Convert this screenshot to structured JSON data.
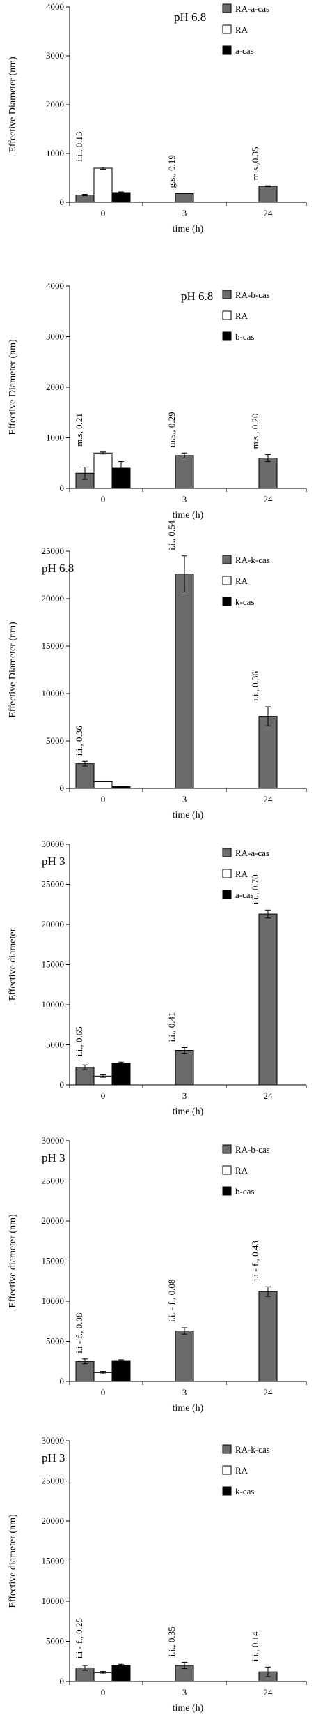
{
  "chart_data": [
    {
      "type": "bar",
      "title": "pH 6.8",
      "xlabel": "time (h)",
      "ylabel": "Effective Diameter (nm)",
      "ylim": [
        0,
        4000
      ],
      "yticks": [
        0,
        1000,
        2000,
        3000,
        4000
      ],
      "categories": [
        "0",
        "3",
        "24"
      ],
      "legend_position": "top-right",
      "series": [
        {
          "name": "RA-a-cas",
          "color": "#6b6b6b",
          "values": [
            150,
            180,
            330
          ],
          "errors": [
            15,
            0,
            10
          ]
        },
        {
          "name": "RA",
          "color": "#ffffff",
          "values": [
            700,
            null,
            null
          ],
          "errors": [
            20,
            0,
            0
          ]
        },
        {
          "name": "a-cas",
          "color": "#000000",
          "values": [
            200,
            null,
            null
          ],
          "errors": [
            15,
            0,
            0
          ]
        }
      ],
      "annotations": [
        "i.i., 0.13",
        "g.s., 0.19",
        "m.s.,0.35"
      ]
    },
    {
      "type": "bar",
      "title": "pH 6.8",
      "xlabel": "time (h)",
      "ylabel": "Effective Diameter (nm)",
      "ylim": [
        0,
        4000
      ],
      "yticks": [
        0,
        1000,
        2000,
        3000,
        4000
      ],
      "categories": [
        "0",
        "3",
        "24"
      ],
      "legend_position": "top-right",
      "series": [
        {
          "name": "RA-b-cas",
          "color": "#6b6b6b",
          "values": [
            300,
            650,
            600
          ],
          "errors": [
            120,
            50,
            70
          ]
        },
        {
          "name": "RA",
          "color": "#ffffff",
          "values": [
            700,
            null,
            null
          ],
          "errors": [
            20,
            0,
            0
          ]
        },
        {
          "name": "b-cas",
          "color": "#000000",
          "values": [
            400,
            null,
            null
          ],
          "errors": [
            130,
            0,
            0
          ]
        }
      ],
      "annotations": [
        "m.s, 0.21",
        "m.s., 0.29",
        "m.s., 0.20"
      ]
    },
    {
      "type": "bar",
      "title": "pH 6.8",
      "xlabel": "time (h)",
      "ylabel": "Effective Diameter (nm)",
      "ylim": [
        0,
        25000
      ],
      "yticks": [
        0,
        5000,
        10000,
        15000,
        20000,
        25000
      ],
      "categories": [
        "0",
        "3",
        "24"
      ],
      "legend_position": "top-right",
      "series": [
        {
          "name": "RA-k-cas",
          "color": "#6b6b6b",
          "values": [
            2600,
            22600,
            7600
          ],
          "errors": [
            250,
            1900,
            1000
          ]
        },
        {
          "name": "RA",
          "color": "#ffffff",
          "values": [
            700,
            null,
            null
          ],
          "errors": [
            0,
            0,
            0
          ]
        },
        {
          "name": "k-cas",
          "color": "#000000",
          "values": [
            200,
            null,
            null
          ],
          "errors": [
            0,
            0,
            0
          ]
        }
      ],
      "annotations": [
        "i.i., 0.36",
        "i.i., 0.54",
        "i.i., 0.36"
      ]
    },
    {
      "type": "bar",
      "title": "pH  3",
      "xlabel": "time (h)",
      "ylabel": "Effective diameter",
      "ylim": [
        0,
        30000
      ],
      "yticks": [
        0,
        5000,
        10000,
        15000,
        20000,
        25000,
        30000
      ],
      "categories": [
        "0",
        "3",
        "24"
      ],
      "legend_position": "top-right",
      "series": [
        {
          "name": "RA-a-cas",
          "color": "#6b6b6b",
          "values": [
            2200,
            4300,
            21300
          ],
          "errors": [
            300,
            350,
            500
          ]
        },
        {
          "name": "RA",
          "color": "#ffffff",
          "values": [
            1100,
            null,
            null
          ],
          "errors": [
            150,
            0,
            0
          ]
        },
        {
          "name": "a-cas",
          "color": "#000000",
          "values": [
            2700,
            null,
            null
          ],
          "errors": [
            150,
            0,
            0
          ]
        }
      ],
      "annotations": [
        "i.i., 0.65",
        "i.i., 0.41",
        "i.i., 0.70"
      ]
    },
    {
      "type": "bar",
      "title": "pH  3",
      "xlabel": "time (h)",
      "ylabel": "Effective diameter (nm)",
      "ylim": [
        0,
        30000
      ],
      "yticks": [
        0,
        5000,
        10000,
        15000,
        20000,
        25000,
        30000
      ],
      "categories": [
        "0",
        "3",
        "24"
      ],
      "legend_position": "top-right",
      "series": [
        {
          "name": "RA-b-cas",
          "color": "#6b6b6b",
          "values": [
            2500,
            6300,
            11200
          ],
          "errors": [
            300,
            400,
            600
          ]
        },
        {
          "name": "RA",
          "color": "#ffffff",
          "values": [
            1100,
            null,
            null
          ],
          "errors": [
            150,
            0,
            0
          ]
        },
        {
          "name": "b-cas",
          "color": "#000000",
          "values": [
            2600,
            null,
            null
          ],
          "errors": [
            100,
            0,
            0
          ]
        }
      ],
      "annotations": [
        "i.i - f., 0.08",
        "i.i. - f., 0.08",
        "i.i - f., 0.43"
      ]
    },
    {
      "type": "bar",
      "title": "pH  3",
      "xlabel": "time (h)",
      "ylabel": "Effective diameter (nm)",
      "ylim": [
        0,
        30000
      ],
      "yticks": [
        0,
        5000,
        10000,
        15000,
        20000,
        25000,
        30000
      ],
      "categories": [
        "0",
        "3",
        "24"
      ],
      "legend_position": "top-right",
      "series": [
        {
          "name": "RA-k-cas",
          "color": "#6b6b6b",
          "values": [
            1700,
            2000,
            1200
          ],
          "errors": [
            300,
            400,
            600
          ]
        },
        {
          "name": "RA",
          "color": "#ffffff",
          "values": [
            1100,
            null,
            null
          ],
          "errors": [
            150,
            0,
            0
          ]
        },
        {
          "name": "k-cas",
          "color": "#000000",
          "values": [
            2000,
            null,
            null
          ],
          "errors": [
            150,
            0,
            0
          ]
        }
      ],
      "annotations": [
        "i.i - f., 0.25",
        "i.i., 0.35",
        "i.i., 0.14"
      ]
    }
  ]
}
